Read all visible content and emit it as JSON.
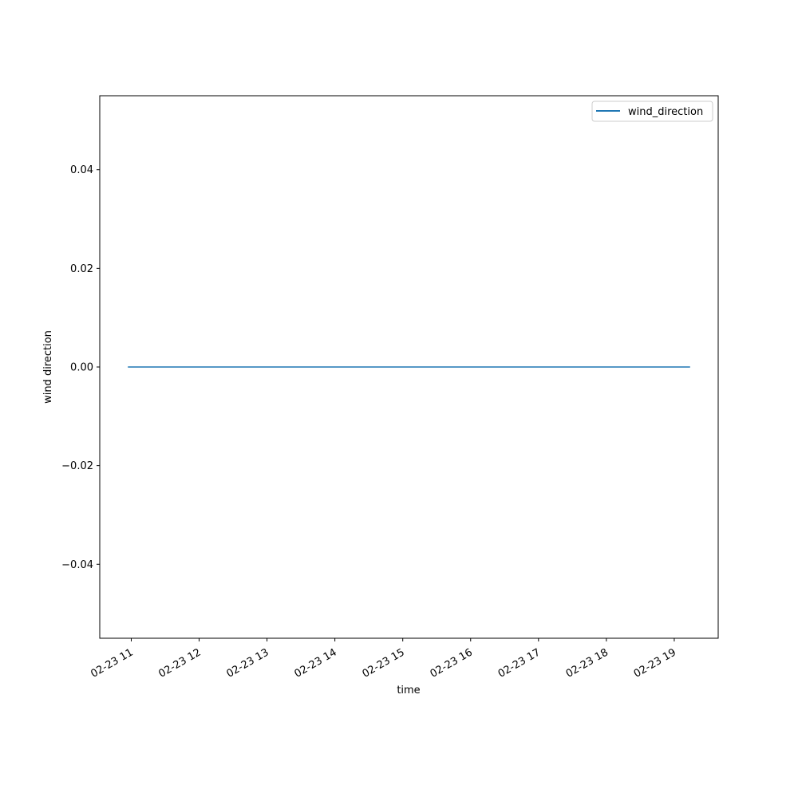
{
  "chart_data": {
    "type": "line",
    "title": "",
    "xlabel": "time",
    "ylabel": "wind direction",
    "x_tick_labels": [
      "02-23 11",
      "02-23 12",
      "02-23 13",
      "02-23 14",
      "02-23 15",
      "02-23 16",
      "02-23 17",
      "02-23 18",
      "02-23 19"
    ],
    "x_tick_hours": [
      11,
      12,
      13,
      14,
      15,
      16,
      17,
      18,
      19
    ],
    "y_ticks": [
      -0.04,
      -0.02,
      0.0,
      0.02,
      0.04
    ],
    "y_tick_labels": [
      "−0.04",
      "−0.02",
      "0.00",
      "0.02",
      "0.04"
    ],
    "ylim": [
      -0.055,
      0.055
    ],
    "grid": false,
    "legend_placement": "top-right",
    "series": [
      {
        "name": "wind_direction",
        "color": "#1f77b4",
        "x": [
          "02-23 10:57",
          "02-23 19:14"
        ],
        "y": [
          0,
          0
        ]
      }
    ]
  }
}
